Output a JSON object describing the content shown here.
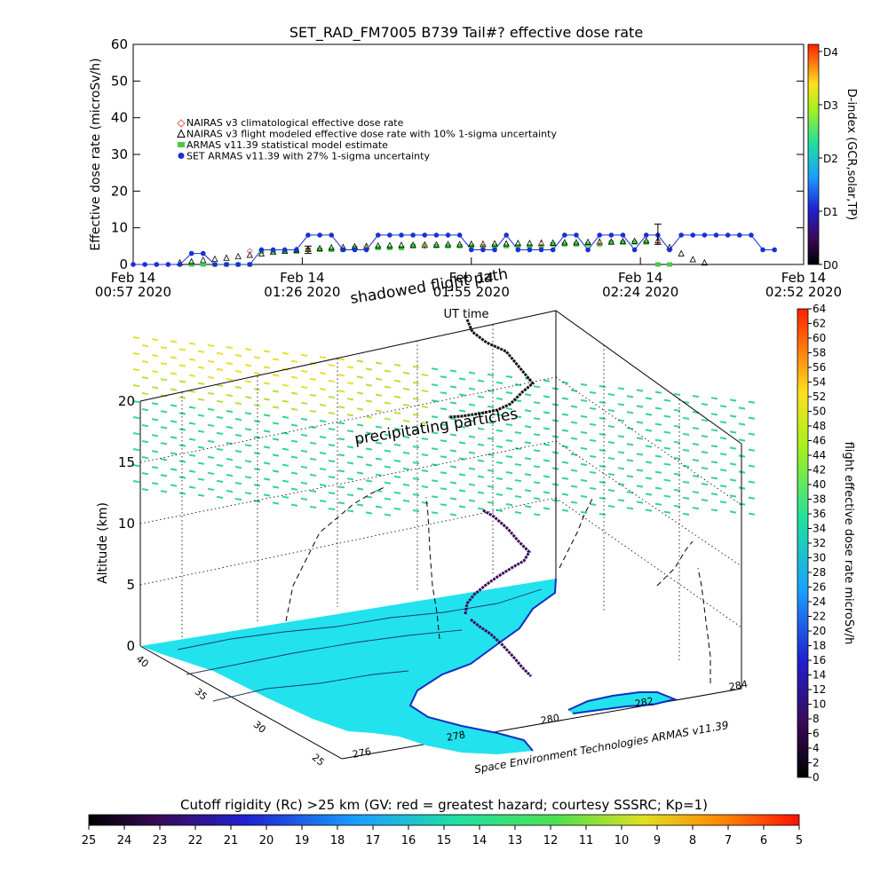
{
  "top_chart": {
    "title": "SET_RAD_FM7005   B739 Tail#? effective dose rate",
    "ylabel": "Effective dose rate (microSv/h)",
    "xlabel": "UT time",
    "right_label": "D-index (GCR,solar,TP)",
    "annotation_shadowed": "shadowed flight path",
    "x_ticks": [
      {
        "t": 0,
        "l1": "Feb 14",
        "l2": "00:57 2020"
      },
      {
        "t": 29,
        "l1": "Feb 14",
        "l2": "01:26 2020"
      },
      {
        "t": 58,
        "l1": "Feb 14",
        "l2": "01:55 2020"
      },
      {
        "t": 87,
        "l1": "Feb 14",
        "l2": "02:24 2020"
      },
      {
        "t": 115,
        "l1": "Feb 14",
        "l2": "02:52 2020"
      }
    ],
    "y_ticks": [
      "0",
      "10",
      "20",
      "30",
      "40",
      "50",
      "60"
    ],
    "d_ticks": [
      {
        "v": 0,
        "l": "D0"
      },
      {
        "v": 1,
        "l": "D1"
      },
      {
        "v": 2,
        "l": "D2"
      },
      {
        "v": 3,
        "l": "D3"
      },
      {
        "v": 4,
        "l": "D4"
      }
    ],
    "legend": [
      {
        "label": "NAIRAS v3 climatological effective dose rate",
        "color": "#e06060",
        "marker": "diamond"
      },
      {
        "label": "NAIRAS v3 flight modeled effective dose rate with 10% 1-sigma uncertainty",
        "color": "#000000",
        "marker": "triangle"
      },
      {
        "label": "ARMAS v11.39 statistical model estimate",
        "color": "#44cc44",
        "marker": "square"
      },
      {
        "label": "SET ARMAS v11.39 with 27% 1-sigma uncertainty",
        "color": "#1a2fd6",
        "marker": "circle"
      }
    ]
  },
  "chart_data": [
    {
      "type": "scatter",
      "title": "SET_RAD_FM7005   B739 Tail#? effective dose rate",
      "xlabel": "UT time",
      "ylabel": "Effective dose rate (microSv/h)",
      "x_unit": "minutes after 00:57 UT, Feb 14 2020",
      "xlim": [
        0,
        115
      ],
      "ylim": [
        0,
        60
      ],
      "series": [
        {
          "name": "SET ARMAS v11.39 with 27% 1-sigma uncertainty",
          "x": [
            0,
            2,
            4,
            6,
            8,
            10,
            12,
            14,
            16,
            18,
            20,
            22,
            24,
            26,
            28,
            30,
            32,
            34,
            36,
            38,
            40,
            42,
            44,
            46,
            48,
            50,
            52,
            54,
            56,
            58,
            60,
            62,
            64,
            66,
            68,
            70,
            72,
            74,
            76,
            78,
            80,
            82,
            84,
            86,
            88,
            90,
            92,
            94,
            96,
            98,
            100,
            102,
            104,
            106,
            108,
            110
          ],
          "y": [
            0,
            0,
            0,
            0,
            0,
            3,
            3,
            0,
            0,
            0,
            0,
            4,
            4,
            4,
            4,
            8,
            8,
            8,
            4,
            4,
            4,
            8,
            8,
            8,
            8,
            8,
            8,
            8,
            8,
            4,
            4,
            4,
            8,
            4,
            4,
            4,
            4,
            8,
            8,
            4,
            8,
            8,
            8,
            4,
            8,
            8,
            4,
            8,
            8,
            8,
            8,
            8,
            8,
            8,
            4,
            4
          ]
        },
        {
          "name": "NAIRAS v3 flight modeled effective dose rate with 10% 1-sigma uncertainty",
          "x": [
            8,
            10,
            12,
            14,
            16,
            18,
            20,
            22,
            24,
            26,
            28,
            30,
            32,
            34,
            36,
            38,
            40,
            42,
            44,
            46,
            48,
            50,
            52,
            54,
            56,
            58,
            60,
            62,
            64,
            66,
            68,
            70,
            72,
            74,
            76,
            78,
            80,
            82,
            84,
            86,
            88,
            90,
            92,
            94,
            96,
            98
          ],
          "y": [
            0.3,
            0.6,
            1.0,
            1.3,
            1.6,
            2.0,
            2.4,
            2.8,
            3.2,
            3.5,
            3.8,
            4.0,
            4.2,
            4.4,
            4.5,
            4.7,
            4.8,
            4.9,
            5.0,
            5.1,
            5.1,
            5.2,
            5.2,
            5.3,
            5.3,
            5.4,
            5.4,
            5.5,
            5.5,
            5.6,
            5.6,
            5.7,
            5.7,
            5.8,
            5.8,
            5.9,
            6.0,
            6.0,
            6.1,
            6.2,
            6.3,
            6.4,
            4.5,
            2.8,
            1.2,
            0.3
          ]
        },
        {
          "name": "ARMAS v11.39 statistical model estimate",
          "x": [
            10,
            12,
            14,
            16,
            18,
            20,
            22,
            24,
            26,
            28,
            30,
            32,
            34,
            36,
            38,
            40,
            42,
            44,
            46,
            48,
            50,
            52,
            54,
            56,
            58,
            60,
            62,
            64,
            66,
            68,
            70,
            72,
            74,
            76,
            78,
            80,
            82,
            84,
            86,
            88,
            90,
            92
          ],
          "y": [
            0,
            0,
            0,
            0,
            0,
            0,
            3.5,
            3.5,
            3.5,
            3.5,
            4,
            4,
            4,
            4,
            4.5,
            4.5,
            4.5,
            4.5,
            4.5,
            5,
            5,
            5,
            5,
            5,
            5,
            5,
            5,
            5,
            5,
            5,
            5,
            5.5,
            5.5,
            5.5,
            5.5,
            5.5,
            6,
            6,
            6,
            6,
            0,
            0
          ]
        },
        {
          "name": "NAIRAS v3 climatological effective dose rate",
          "x": [
            20,
            30,
            40,
            50,
            60,
            70,
            80,
            90
          ],
          "y": [
            3.6,
            4.2,
            4.6,
            5.0,
            5.3,
            5.5,
            5.8,
            6.0
          ]
        }
      ],
      "error_bars": [
        {
          "x": 30,
          "y": 4,
          "low": 3,
          "high": 5
        },
        {
          "x": 90,
          "y": 8,
          "low": 5.5,
          "high": 11
        }
      ],
      "right_axis": {
        "label": "D-index (GCR,solar,TP)",
        "ticks": [
          "D0",
          "D1",
          "D2",
          "D3",
          "D4"
        ]
      }
    },
    {
      "type": "scatter",
      "title": "",
      "zlabel": "Altitude (km)",
      "z_ticks": [
        "0",
        "5",
        "10",
        "15",
        "20"
      ],
      "lat_ticks": [
        "40",
        "35",
        "30",
        "25"
      ],
      "lon_ticks": [
        "276",
        "278",
        "280",
        "282",
        "284"
      ],
      "annotations": [
        "precipitating particles"
      ],
      "series": [
        {
          "name": "flight effective dose rate microSv/h",
          "lon": [
            281.5,
            281.3,
            281.0,
            280.7,
            280.5,
            280.3,
            280.1
          ],
          "lat": [
            36,
            36,
            36,
            36,
            35.7,
            35.7,
            35.5
          ],
          "alt_km": [
            20,
            19,
            18,
            17,
            16,
            15,
            14
          ]
        },
        {
          "name": "flight track at altitude",
          "lon": [
            280.0,
            280.5,
            281.0,
            281.6,
            281.8
          ],
          "lat": [
            33,
            34,
            35,
            36,
            37
          ],
          "alt_km": [
            0.5,
            3,
            6,
            9,
            11
          ]
        }
      ]
    }
  ],
  "lower_chart": {
    "zlabel": "Altitude (km)",
    "annotation_particles": "precipitating particles",
    "credit": "Space Environment Technologies ARMAS v11.39",
    "z_ticks": [
      "0",
      "5",
      "10",
      "15",
      "20"
    ],
    "lat_ticks": [
      "40",
      "35",
      "30",
      "25"
    ],
    "lon_ticks": [
      "276",
      "278",
      "280",
      "282",
      "284"
    ],
    "right_label": "flight effective dose rate microSv/h",
    "right_ticks": [
      "0",
      "2",
      "4",
      "6",
      "8",
      "10",
      "12",
      "14",
      "16",
      "18",
      "20",
      "22",
      "24",
      "26",
      "28",
      "30",
      "32",
      "34",
      "36",
      "38",
      "40",
      "42",
      "44",
      "46",
      "48",
      "50",
      "52",
      "54",
      "56",
      "58",
      "60",
      "62",
      "64"
    ]
  },
  "bottom_bar": {
    "title": "Cutoff rigidity (Rc) >25 km (GV: red = greatest hazard; courtesy SSSRC; Kp=1)",
    "ticks": [
      "25",
      "24",
      "23",
      "22",
      "21",
      "20",
      "19",
      "18",
      "17",
      "16",
      "15",
      "14",
      "13",
      "12",
      "11",
      "10",
      "9",
      "8",
      "7",
      "6",
      "5"
    ]
  },
  "colors": {
    "armas": "#1a2fd6",
    "nairas_flight": "#000000",
    "armas_model": "#44cc44",
    "nairas_clim": "#e06060",
    "map_fill": "#22e2ee",
    "coast": "#1030c0"
  }
}
